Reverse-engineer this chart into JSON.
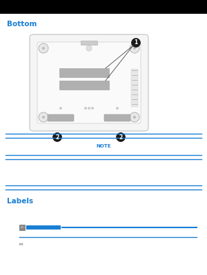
{
  "outer_bg": "#000000",
  "page_bg": "#ffffff",
  "blue": "#1a7fd4",
  "white": "#ffffff",
  "section1_title": "Bottom",
  "section2_title": "Labels",
  "note_label": "NOTE",
  "laptop_border": "#cccccc",
  "laptop_fill": "#f5f5f5",
  "vent_fill": "#b0b0b0",
  "vent_edge": "#999999",
  "screw_fill": "#e8e8e8",
  "screw_edge": "#aaaaaa",
  "callout_fill": "#1a1a1a",
  "line_color": "#1a7fd4",
  "icon_fill": "#444444",
  "icon_line": "#1a7fd4",
  "second_line": "#1a7fd4"
}
